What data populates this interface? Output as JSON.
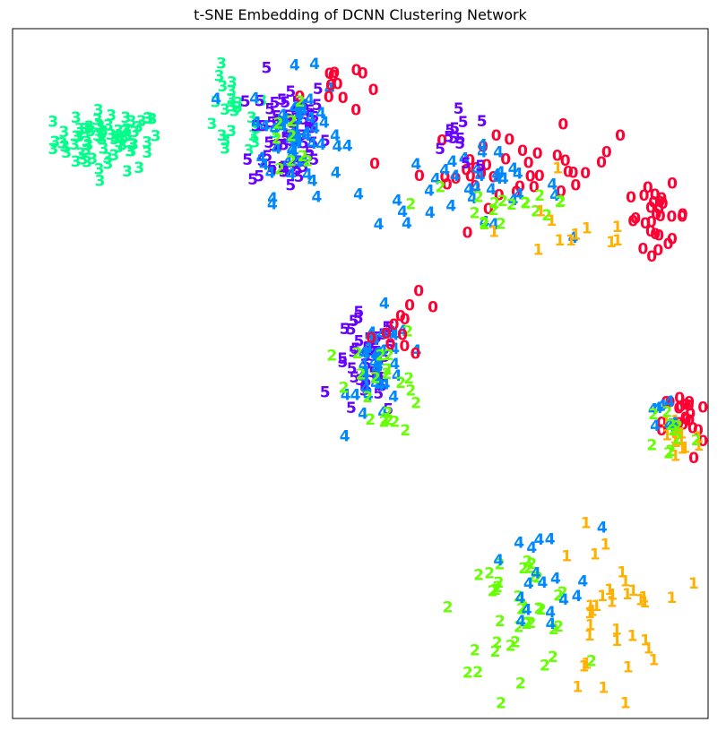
{
  "chart_data": {
    "type": "scatter",
    "title": "t-SNE Embedding of DCNN Clustering Network",
    "xlabel": "",
    "ylabel": "",
    "axes_ticks": "none",
    "grid": false,
    "legend": "none",
    "marker": "digit label of each sample",
    "xlim": [
      0,
      100
    ],
    "ylim": [
      0,
      100
    ],
    "classes": [
      {
        "label": "0",
        "color": "#ff0033"
      },
      {
        "label": "1",
        "color": "#ffb000"
      },
      {
        "label": "2",
        "color": "#66ff00"
      },
      {
        "label": "3",
        "color": "#00ff88"
      },
      {
        "label": "4",
        "color": "#0088ff"
      },
      {
        "label": "5",
        "color": "#6600ff"
      }
    ],
    "clusters": [
      {
        "label": "3",
        "count": 70,
        "cx": 13,
        "cy": 83,
        "sx": 7,
        "sy": 4
      },
      {
        "label": "3",
        "count": 25,
        "cx": 31,
        "cy": 86,
        "sx": 5,
        "sy": 6
      },
      {
        "label": "5",
        "count": 65,
        "cx": 39,
        "cy": 84,
        "sx": 5,
        "sy": 8
      },
      {
        "label": "4",
        "count": 55,
        "cx": 40,
        "cy": 84,
        "sx": 6,
        "sy": 8
      },
      {
        "label": "0",
        "count": 12,
        "cx": 45,
        "cy": 91,
        "sx": 4,
        "sy": 4
      },
      {
        "label": "2",
        "count": 10,
        "cx": 40,
        "cy": 83,
        "sx": 6,
        "sy": 6
      },
      {
        "label": "0",
        "count": 40,
        "cx": 72,
        "cy": 79,
        "sx": 13,
        "sy": 5
      },
      {
        "label": "0",
        "count": 28,
        "cx": 92,
        "cy": 72,
        "sx": 4,
        "sy": 4
      },
      {
        "label": "4",
        "count": 35,
        "cx": 65,
        "cy": 76,
        "sx": 12,
        "sy": 5
      },
      {
        "label": "2",
        "count": 18,
        "cx": 70,
        "cy": 74,
        "sx": 12,
        "sy": 5
      },
      {
        "label": "1",
        "count": 12,
        "cx": 80,
        "cy": 70,
        "sx": 10,
        "sy": 5
      },
      {
        "label": "5",
        "count": 12,
        "cx": 64,
        "cy": 83,
        "sx": 5,
        "sy": 4
      },
      {
        "label": "5",
        "count": 40,
        "cx": 50,
        "cy": 50,
        "sx": 4,
        "sy": 7
      },
      {
        "label": "4",
        "count": 40,
        "cx": 52,
        "cy": 50,
        "sx": 4,
        "sy": 7
      },
      {
        "label": "2",
        "count": 22,
        "cx": 53,
        "cy": 48,
        "sx": 5,
        "sy": 7
      },
      {
        "label": "0",
        "count": 12,
        "cx": 56,
        "cy": 56,
        "sx": 5,
        "sy": 4
      },
      {
        "label": "2",
        "count": 40,
        "cx": 72,
        "cy": 15,
        "sx": 8,
        "sy": 8
      },
      {
        "label": "1",
        "count": 35,
        "cx": 85,
        "cy": 14,
        "sx": 7,
        "sy": 11
      },
      {
        "label": "4",
        "count": 18,
        "cx": 74,
        "cy": 18,
        "sx": 9,
        "sy": 8
      },
      {
        "label": "0",
        "count": 22,
        "cx": 96,
        "cy": 42,
        "sx": 3,
        "sy": 5
      },
      {
        "label": "1",
        "count": 15,
        "cx": 95,
        "cy": 40,
        "sx": 3,
        "sy": 5
      },
      {
        "label": "4",
        "count": 8,
        "cx": 93,
        "cy": 43,
        "sx": 3,
        "sy": 3
      },
      {
        "label": "2",
        "count": 10,
        "cx": 94,
        "cy": 41,
        "sx": 3,
        "sy": 4
      }
    ]
  }
}
